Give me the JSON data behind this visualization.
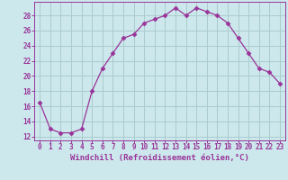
{
  "x": [
    0,
    1,
    2,
    3,
    4,
    5,
    6,
    7,
    8,
    9,
    10,
    11,
    12,
    13,
    14,
    15,
    16,
    17,
    18,
    19,
    20,
    21,
    22,
    23
  ],
  "y": [
    16.5,
    13.0,
    12.5,
    12.5,
    13.0,
    18.0,
    21.0,
    23.0,
    25.0,
    25.5,
    27.0,
    27.5,
    28.0,
    29.0,
    28.0,
    29.0,
    28.5,
    28.0,
    27.0,
    25.0,
    23.0,
    21.0,
    20.5,
    19.0
  ],
  "line_color": "#993399",
  "marker": "D",
  "marker_size": 2.5,
  "bg_color": "#cce8ec",
  "grid_color": "#aacccc",
  "xlabel": "Windchill (Refroidissement éolien,°C)",
  "xlim": [
    -0.5,
    23.5
  ],
  "ylim": [
    11.5,
    29.8
  ],
  "yticks": [
    12,
    14,
    16,
    18,
    20,
    22,
    24,
    26,
    28
  ],
  "xticks": [
    0,
    1,
    2,
    3,
    4,
    5,
    6,
    7,
    8,
    9,
    10,
    11,
    12,
    13,
    14,
    15,
    16,
    17,
    18,
    19,
    20,
    21,
    22,
    23
  ],
  "axis_color": "#993399",
  "tick_color": "#993399",
  "label_color": "#993399",
  "tick_labelsize": 5.5,
  "xlabel_fontsize": 6.5
}
